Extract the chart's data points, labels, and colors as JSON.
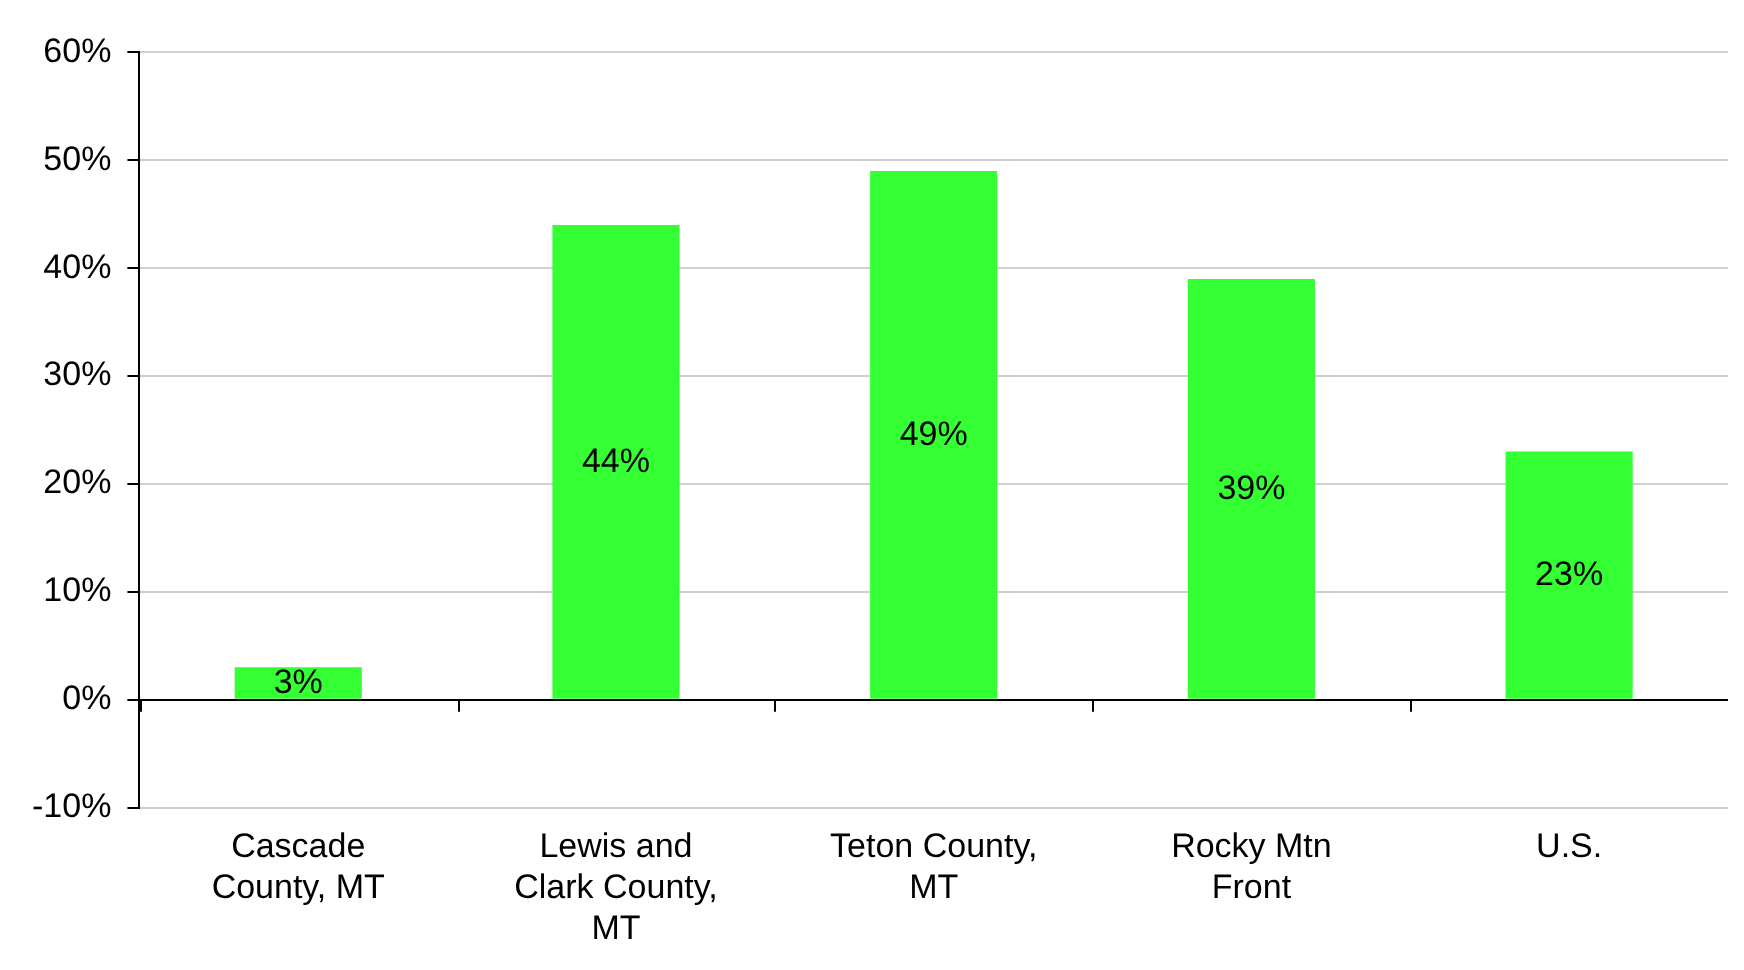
{
  "chart_data": {
    "type": "bar",
    "categories": [
      "Cascade County, MT",
      "Lewis and Clark County, MT",
      "Teton County, MT",
      "Rocky Mtn Front",
      "U.S."
    ],
    "values": [
      3,
      44,
      49,
      39,
      23
    ],
    "value_labels": [
      "3%",
      "44%",
      "49%",
      "39%",
      "23%"
    ],
    "color": "#33ff33",
    "ylim": [
      -10,
      60
    ],
    "yticks": [
      {
        "value": -10,
        "label": "-10%"
      },
      {
        "value": 0,
        "label": "0%"
      },
      {
        "value": 10,
        "label": "10%"
      },
      {
        "value": 20,
        "label": "20%"
      },
      {
        "value": 30,
        "label": "30%"
      },
      {
        "value": 40,
        "label": "40%"
      },
      {
        "value": 50,
        "label": "50%"
      },
      {
        "value": 60,
        "label": "60%"
      }
    ],
    "grid": "y"
  }
}
